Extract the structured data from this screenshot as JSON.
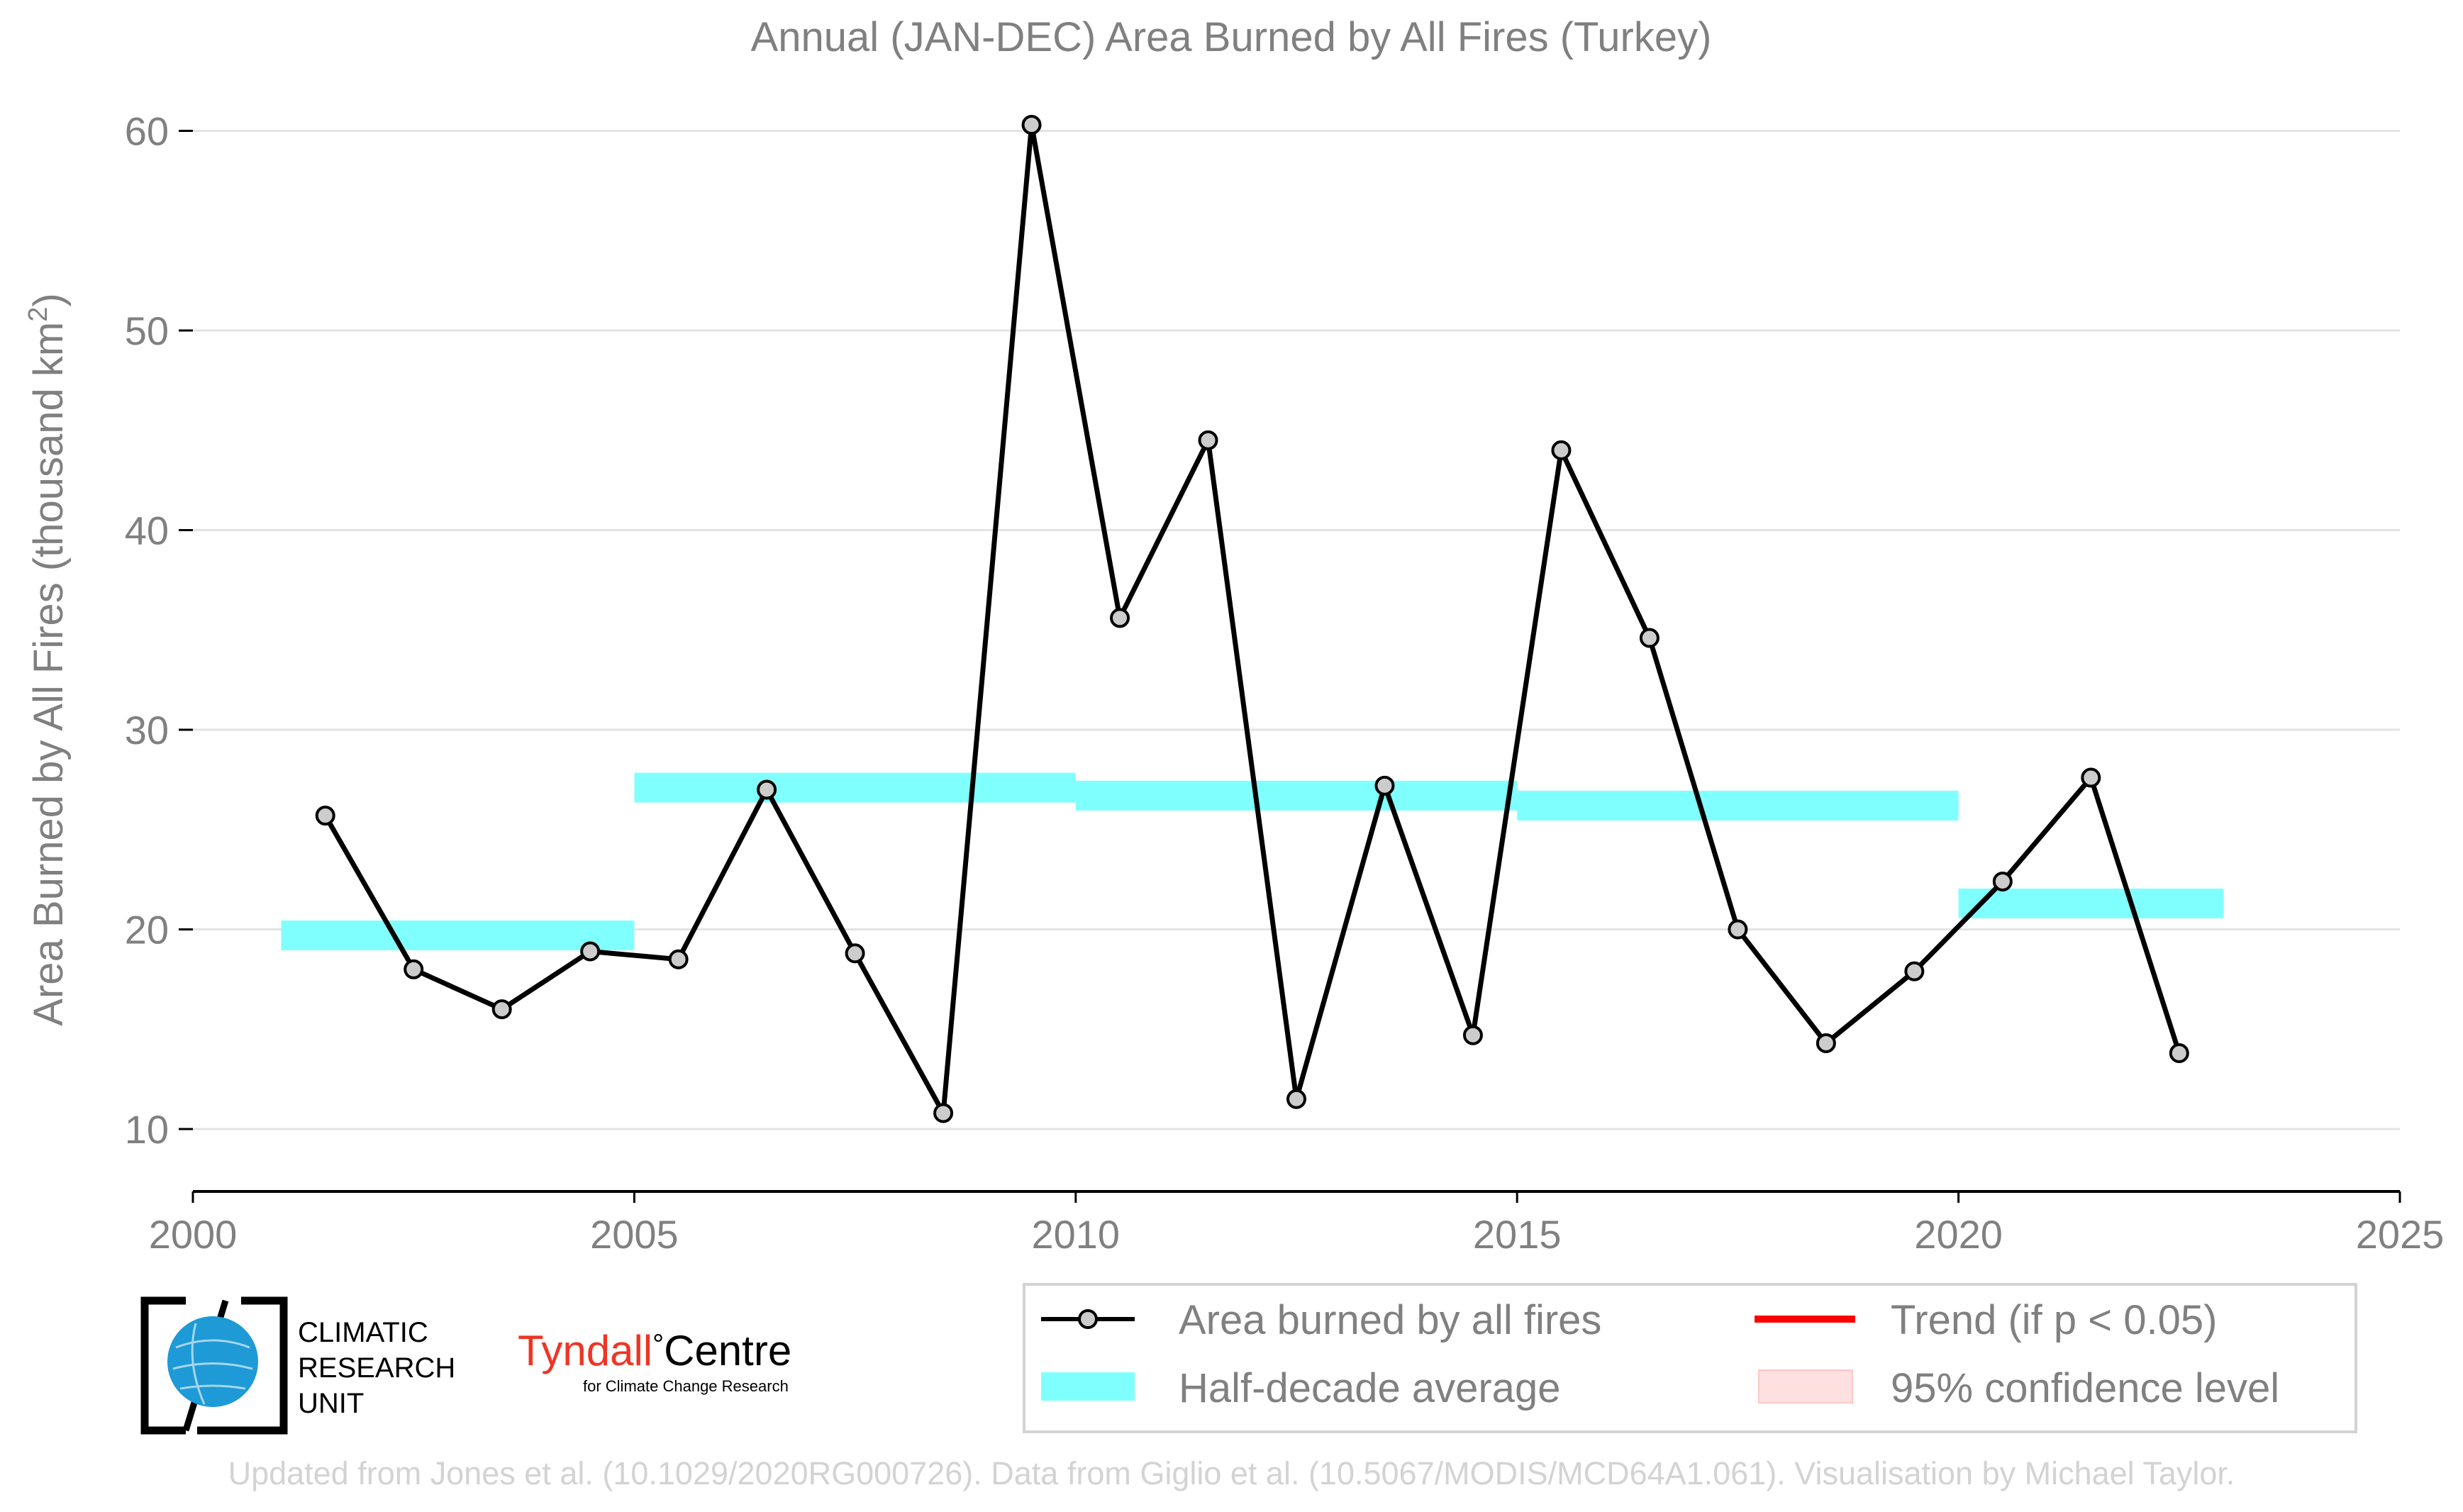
{
  "chart_data": {
    "type": "line",
    "title": "Annual (JAN-DEC) Area Burned by All Fires (Turkey)",
    "xlabel": "",
    "ylabel": "Area Burned by All Fires (thousand km",
    "ylabel_superscript": "2",
    "ylabel_close": ")",
    "xlim": [
      2000,
      2025
    ],
    "ylim": [
      7,
      61
    ],
    "x_ticks": [
      2000,
      2005,
      2010,
      2015,
      2020,
      2025
    ],
    "y_ticks": [
      10,
      20,
      30,
      40,
      50,
      60
    ],
    "grid": "horizontal",
    "legend_position": "bottom-right, below plot",
    "series": [
      {
        "name": "Area burned by all fires",
        "style": "line-with-markers",
        "color": "#000000",
        "marker_fill": "#cccccc",
        "x": [
          2001.5,
          2002.5,
          2003.5,
          2004.5,
          2005.5,
          2006.5,
          2007.5,
          2008.5,
          2009.5,
          2010.5,
          2011.5,
          2012.5,
          2013.5,
          2014.5,
          2015.5,
          2016.5,
          2017.5,
          2018.5,
          2019.5,
          2020.5,
          2021.5,
          2022.5
        ],
        "y": [
          25.7,
          18.0,
          16.0,
          18.9,
          18.5,
          27.0,
          18.8,
          10.8,
          60.3,
          35.6,
          44.5,
          11.5,
          27.2,
          14.7,
          44.0,
          34.6,
          20.0,
          14.3,
          17.9,
          22.4,
          27.6,
          13.8
        ]
      },
      {
        "name": "Half-decade average",
        "style": "horizontal-bands",
        "color": "#80ffff",
        "segments": [
          {
            "x_start": 2001,
            "x_end": 2005,
            "y": 19.7
          },
          {
            "x_start": 2005,
            "x_end": 2010,
            "y": 27.1
          },
          {
            "x_start": 2010,
            "x_end": 2015,
            "y": 26.7
          },
          {
            "x_start": 2015,
            "x_end": 2020,
            "y": 26.2
          },
          {
            "x_start": 2020,
            "x_end": 2023,
            "y": 21.3
          }
        ]
      }
    ],
    "legend": [
      {
        "label": "Area burned by all fires",
        "swatch": "line-marker",
        "color": "#000000"
      },
      {
        "label": "Trend (if p < 0.05)",
        "swatch": "line",
        "color": "#ff0000"
      },
      {
        "label": "Half-decade average",
        "swatch": "band",
        "color": "#80ffff"
      },
      {
        "label": "95% confidence level",
        "swatch": "band",
        "color": "#ffe0e0"
      }
    ]
  },
  "logos": {
    "cru": [
      "CLIMATIC",
      "RESEARCH",
      "UNIT"
    ],
    "tyndall_name": "Tyndall",
    "tyndall_degree": "°",
    "tyndall_centre": "Centre",
    "tyndall_sub": "for Climate Change Research",
    "tyndall_color": "#ee3524",
    "cru_globe_color": "#1e9ad6"
  },
  "footer": "Updated from Jones et al. (10.1029/2020RG000726). Data from Giglio et al. (10.5067/MODIS/MCD64A1.061). Visualisation by Michael Taylor."
}
